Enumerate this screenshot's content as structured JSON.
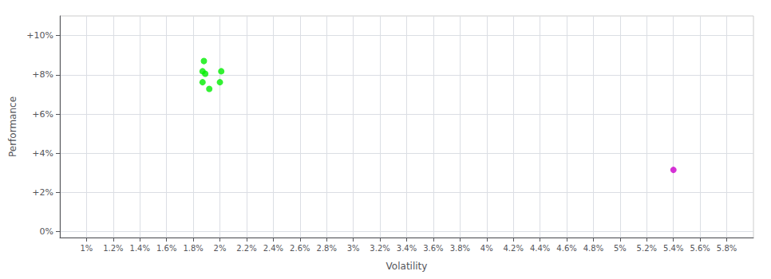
{
  "chart_data": {
    "type": "scatter",
    "xlabel": "Volatility",
    "ylabel": "Performance",
    "xlim": [
      0.8,
      6.0
    ],
    "ylim": [
      -0.3,
      11.0
    ],
    "xticks": [
      {
        "value": 1,
        "label": "1%"
      },
      {
        "value": 1.2,
        "label": "1.2%"
      },
      {
        "value": 1.4,
        "label": "1.4%"
      },
      {
        "value": 1.6,
        "label": "1.6%"
      },
      {
        "value": 1.8,
        "label": "1.8%"
      },
      {
        "value": 2.0,
        "label": "2%"
      },
      {
        "value": 2.2,
        "label": "2.2%"
      },
      {
        "value": 2.4,
        "label": "2.4%"
      },
      {
        "value": 2.6,
        "label": "2.6%"
      },
      {
        "value": 2.8,
        "label": "2.8%"
      },
      {
        "value": 3.0,
        "label": "3%"
      },
      {
        "value": 3.2,
        "label": "3.2%"
      },
      {
        "value": 3.4,
        "label": "3.4%"
      },
      {
        "value": 3.6,
        "label": "3.6%"
      },
      {
        "value": 3.8,
        "label": "3.8%"
      },
      {
        "value": 4.0,
        "label": "4%"
      },
      {
        "value": 4.2,
        "label": "4.2%"
      },
      {
        "value": 4.4,
        "label": "4.4%"
      },
      {
        "value": 4.6,
        "label": "4.6%"
      },
      {
        "value": 4.8,
        "label": "4.8%"
      },
      {
        "value": 5.0,
        "label": "5%"
      },
      {
        "value": 5.2,
        "label": "5.2%"
      },
      {
        "value": 5.4,
        "label": "5.4%"
      },
      {
        "value": 5.6,
        "label": "5.6%"
      },
      {
        "value": 5.8,
        "label": "5.8%"
      }
    ],
    "yticks": [
      {
        "value": 0,
        "label": "0%"
      },
      {
        "value": 2,
        "label": "+2%"
      },
      {
        "value": 4,
        "label": "+4%"
      },
      {
        "value": 6,
        "label": "+6%"
      },
      {
        "value": 8,
        "label": "+8%"
      },
      {
        "value": 10,
        "label": "+10%"
      }
    ],
    "grid": true,
    "series": [
      {
        "color": "#00ee00",
        "x": [
          1.88,
          1.87,
          1.89,
          1.87,
          2.01,
          2.0,
          1.92
        ],
        "values": [
          8.7,
          8.18,
          8.05,
          7.62,
          8.18,
          7.62,
          7.28
        ]
      },
      {
        "color": "#cc00cc",
        "x": [
          5.4
        ],
        "values": [
          3.15
        ]
      }
    ]
  }
}
